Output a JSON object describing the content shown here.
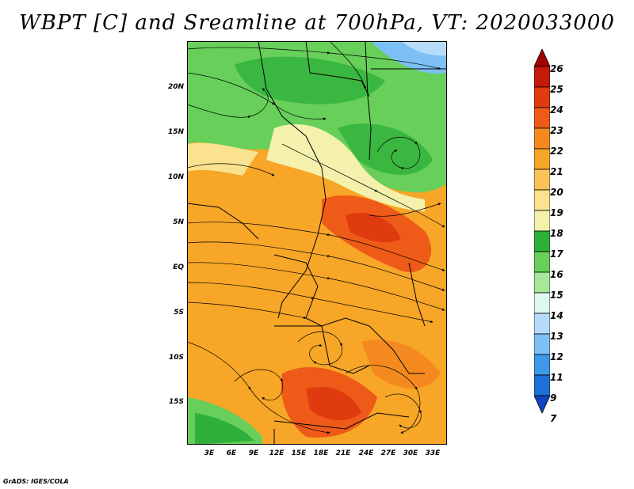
{
  "title": "WBPT [C] and Sreamline at 700hPa, VT: 2020033000",
  "credit": "GrADS: IGES/COLA",
  "lat_labels": [
    "20N",
    "15N",
    "10N",
    "5N",
    "EQ",
    "5S",
    "10S",
    "15S"
  ],
  "lon_labels": [
    "3E",
    "6E",
    "9E",
    "12E",
    "15E",
    "18E",
    "21E",
    "24E",
    "27E",
    "30E",
    "33E"
  ],
  "colorbar": {
    "labels": [
      "26",
      "25",
      "24",
      "23",
      "22",
      "21",
      "20",
      "19",
      "18",
      "17",
      "16",
      "15",
      "14",
      "13",
      "12",
      "11",
      "9",
      "7"
    ],
    "colors": [
      "#a50000",
      "#c51a0a",
      "#e03a10",
      "#ee5a18",
      "#f48a1f",
      "#f7a627",
      "#f9c35a",
      "#fbe28e",
      "#f4f1ad",
      "#2fb03a",
      "#67cf5a",
      "#a6e79a",
      "#e1f8f1",
      "#b7dcfb",
      "#7cc0f6",
      "#3d98ea",
      "#1e6fd8",
      "#1145c0"
    ]
  }
}
